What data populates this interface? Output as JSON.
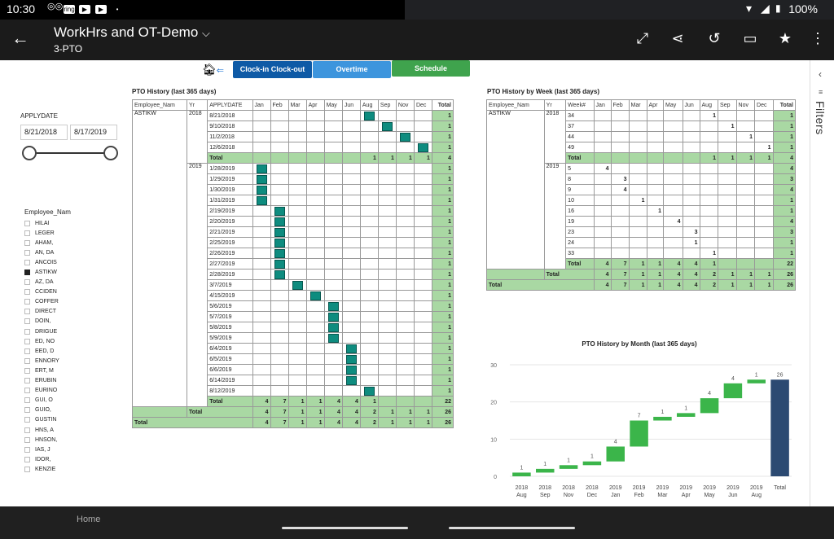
{
  "status": {
    "time": "10:30",
    "battery": "100%"
  },
  "app": {
    "title": "WorkHrs and OT-Demo",
    "subtitle": "3-PTO"
  },
  "nav_buttons": [
    {
      "label": "Clock-in Clock-out",
      "color": "#0e5aa6"
    },
    {
      "label": "Overtime",
      "color": "#3d95dd"
    },
    {
      "label": "Schedule",
      "color": "#3fa34d"
    }
  ],
  "filters_label": "Filters",
  "system_nav": {
    "home": "Home"
  },
  "date_slicer": {
    "label": "APPLYDATE",
    "start": "8/21/2018",
    "end": "8/17/2019"
  },
  "employee_slicer": {
    "header": "Employee_Nam",
    "items": [
      "HILAI",
      "LEGER",
      "AHAM,",
      "AN, DA",
      "ANCOIS",
      "ASTIKW",
      "AZ, DA",
      "CCIDEN",
      "COFFER",
      "DIRECT",
      "DOIN,",
      "DRIGUE",
      "ED, NO",
      "EED, D",
      "ENNORY",
      "ERT, M",
      "ERUBIN",
      "EURINO",
      "GUI, O",
      "GUIO,",
      "GUSTIN",
      "HNS, A",
      "HNSON,",
      "IAS, J",
      "IDOR,",
      "KENZIE"
    ],
    "selected": "ASTIKW"
  },
  "pto_history": {
    "title": "PTO History  (last 365 days)",
    "headers": [
      "Employee_Nam",
      "Yr",
      "APPLYDATE",
      "Jan",
      "Feb",
      "Mar",
      "Apr",
      "May",
      "Jun",
      "Aug",
      "Sep",
      "Nov",
      "Dec",
      "Total"
    ],
    "employee": "ASTIKW",
    "groups": [
      {
        "yr": "2018",
        "rows": [
          {
            "date": "8/21/2018",
            "m": "Aug",
            "total": "1"
          },
          {
            "date": "9/10/2018",
            "m": "Sep",
            "total": "1"
          },
          {
            "date": "11/2/2018",
            "m": "Nov",
            "total": "1"
          },
          {
            "date": "12/6/2018",
            "m": "Dec",
            "total": "1"
          }
        ],
        "subtotal": {
          "label": "Total",
          "cells": [
            "",
            "",
            "",
            "",
            "",
            "",
            "1",
            "1",
            "1",
            "1"
          ],
          "total": "4"
        }
      },
      {
        "yr": "2019",
        "rows": [
          {
            "date": "1/28/2019",
            "m": "Jan",
            "total": "1"
          },
          {
            "date": "1/29/2019",
            "m": "Jan",
            "total": "1"
          },
          {
            "date": "1/30/2019",
            "m": "Jan",
            "total": "1"
          },
          {
            "date": "1/31/2019",
            "m": "Jan",
            "total": "1"
          },
          {
            "date": "2/19/2019",
            "m": "Feb",
            "total": "1"
          },
          {
            "date": "2/20/2019",
            "m": "Feb",
            "total": "1"
          },
          {
            "date": "2/21/2019",
            "m": "Feb",
            "total": "1"
          },
          {
            "date": "2/25/2019",
            "m": "Feb",
            "total": "1"
          },
          {
            "date": "2/26/2019",
            "m": "Feb",
            "total": "1"
          },
          {
            "date": "2/27/2019",
            "m": "Feb",
            "total": "1"
          },
          {
            "date": "2/28/2019",
            "m": "Feb",
            "total": "1"
          },
          {
            "date": "3/7/2019",
            "m": "Mar",
            "total": "1"
          },
          {
            "date": "4/15/2019",
            "m": "Apr",
            "total": "1"
          },
          {
            "date": "5/6/2019",
            "m": "May",
            "total": "1"
          },
          {
            "date": "5/7/2019",
            "m": "May",
            "total": "1"
          },
          {
            "date": "5/8/2019",
            "m": "May",
            "total": "1"
          },
          {
            "date": "5/9/2019",
            "m": "May",
            "total": "1"
          },
          {
            "date": "6/4/2019",
            "m": "Jun",
            "total": "1"
          },
          {
            "date": "6/5/2019",
            "m": "Jun",
            "total": "1"
          },
          {
            "date": "6/6/2019",
            "m": "Jun",
            "total": "1"
          },
          {
            "date": "6/14/2019",
            "m": "Jun",
            "total": "1"
          },
          {
            "date": "8/12/2019",
            "m": "Aug",
            "total": "1"
          }
        ],
        "subtotal": {
          "label": "Total",
          "cells": [
            "4",
            "7",
            "1",
            "1",
            "4",
            "4",
            "1",
            "",
            "",
            ""
          ],
          "total": "22"
        }
      }
    ],
    "emp_total": {
      "label": "Total",
      "cells": [
        "4",
        "7",
        "1",
        "1",
        "4",
        "4",
        "2",
        "1",
        "1",
        "1"
      ],
      "total": "26"
    },
    "grand_total": {
      "label": "Total",
      "cells": [
        "4",
        "7",
        "1",
        "1",
        "4",
        "4",
        "2",
        "1",
        "1",
        "1"
      ],
      "total": "26"
    }
  },
  "pto_week": {
    "title": "PTO History by Week  (last 365 days)",
    "headers": [
      "Employee_Nam",
      "Yr",
      "Week#",
      "Jan",
      "Feb",
      "Mar",
      "Apr",
      "May",
      "Jun",
      "Aug",
      "Sep",
      "Nov",
      "Dec",
      "Total"
    ],
    "employee": "ASTIKW",
    "groups": [
      {
        "yr": "2018",
        "rows": [
          {
            "week": "34",
            "cells": [
              "",
              "",
              "",
              "",
              "",
              "",
              "1",
              "",
              "",
              ""
            ],
            "total": "1"
          },
          {
            "week": "37",
            "cells": [
              "",
              "",
              "",
              "",
              "",
              "",
              "",
              "1",
              "",
              ""
            ],
            "total": "1"
          },
          {
            "week": "44",
            "cells": [
              "",
              "",
              "",
              "",
              "",
              "",
              "",
              "",
              "1",
              ""
            ],
            "total": "1"
          },
          {
            "week": "49",
            "cells": [
              "",
              "",
              "",
              "",
              "",
              "",
              "",
              "",
              "",
              "1"
            ],
            "total": "1"
          }
        ],
        "subtotal": {
          "label": "Total",
          "cells": [
            "",
            "",
            "",
            "",
            "",
            "",
            "1",
            "1",
            "1",
            "1"
          ],
          "total": "4"
        }
      },
      {
        "yr": "2019",
        "rows": [
          {
            "week": "5",
            "cells": [
              "4",
              "",
              "",
              "",
              "",
              "",
              "",
              "",
              "",
              ""
            ],
            "total": "4"
          },
          {
            "week": "8",
            "cells": [
              "",
              "3",
              "",
              "",
              "",
              "",
              "",
              "",
              "",
              ""
            ],
            "total": "3"
          },
          {
            "week": "9",
            "cells": [
              "",
              "4",
              "",
              "",
              "",
              "",
              "",
              "",
              "",
              ""
            ],
            "total": "4"
          },
          {
            "week": "10",
            "cells": [
              "",
              "",
              "1",
              "",
              "",
              "",
              "",
              "",
              "",
              ""
            ],
            "total": "1"
          },
          {
            "week": "16",
            "cells": [
              "",
              "",
              "",
              "1",
              "",
              "",
              "",
              "",
              "",
              ""
            ],
            "total": "1"
          },
          {
            "week": "19",
            "cells": [
              "",
              "",
              "",
              "",
              "4",
              "",
              "",
              "",
              "",
              ""
            ],
            "total": "4"
          },
          {
            "week": "23",
            "cells": [
              "",
              "",
              "",
              "",
              "",
              "3",
              "",
              "",
              "",
              ""
            ],
            "total": "3"
          },
          {
            "week": "24",
            "cells": [
              "",
              "",
              "",
              "",
              "",
              "1",
              "",
              "",
              "",
              ""
            ],
            "total": "1"
          },
          {
            "week": "33",
            "cells": [
              "",
              "",
              "",
              "",
              "",
              "",
              "1",
              "",
              "",
              ""
            ],
            "total": "1"
          }
        ],
        "subtotal": {
          "label": "Total",
          "cells": [
            "4",
            "7",
            "1",
            "1",
            "4",
            "4",
            "1",
            "",
            "",
            ""
          ],
          "total": "22"
        }
      }
    ],
    "emp_total": {
      "label": "Total",
      "cells": [
        "4",
        "7",
        "1",
        "1",
        "4",
        "4",
        "2",
        "1",
        "1",
        "1"
      ],
      "total": "26"
    },
    "grand_total": {
      "label": "Total",
      "cells": [
        "4",
        "7",
        "1",
        "1",
        "4",
        "4",
        "2",
        "1",
        "1",
        "1"
      ],
      "total": "26"
    }
  },
  "chart_data": {
    "type": "bar",
    "subtype": "waterfall",
    "title": "PTO History by Month  (last 365 days)",
    "categories": [
      [
        "2018",
        "Aug"
      ],
      [
        "2018",
        "Sep"
      ],
      [
        "2018",
        "Nov"
      ],
      [
        "2018",
        "Dec"
      ],
      [
        "2019",
        "Jan"
      ],
      [
        "2019",
        "Feb"
      ],
      [
        "2019",
        "Mar"
      ],
      [
        "2019",
        "Apr"
      ],
      [
        "2019",
        "May"
      ],
      [
        "2019",
        "Jun"
      ],
      [
        "2019",
        "Aug"
      ],
      [
        "Total",
        ""
      ]
    ],
    "values": [
      1,
      1,
      1,
      1,
      4,
      7,
      1,
      1,
      4,
      4,
      1,
      26
    ],
    "yticks": [
      0,
      10,
      20,
      30
    ],
    "ylim": [
      0,
      30
    ],
    "colors": {
      "increase": "#3bb54a",
      "total": "#2c4a72"
    }
  }
}
